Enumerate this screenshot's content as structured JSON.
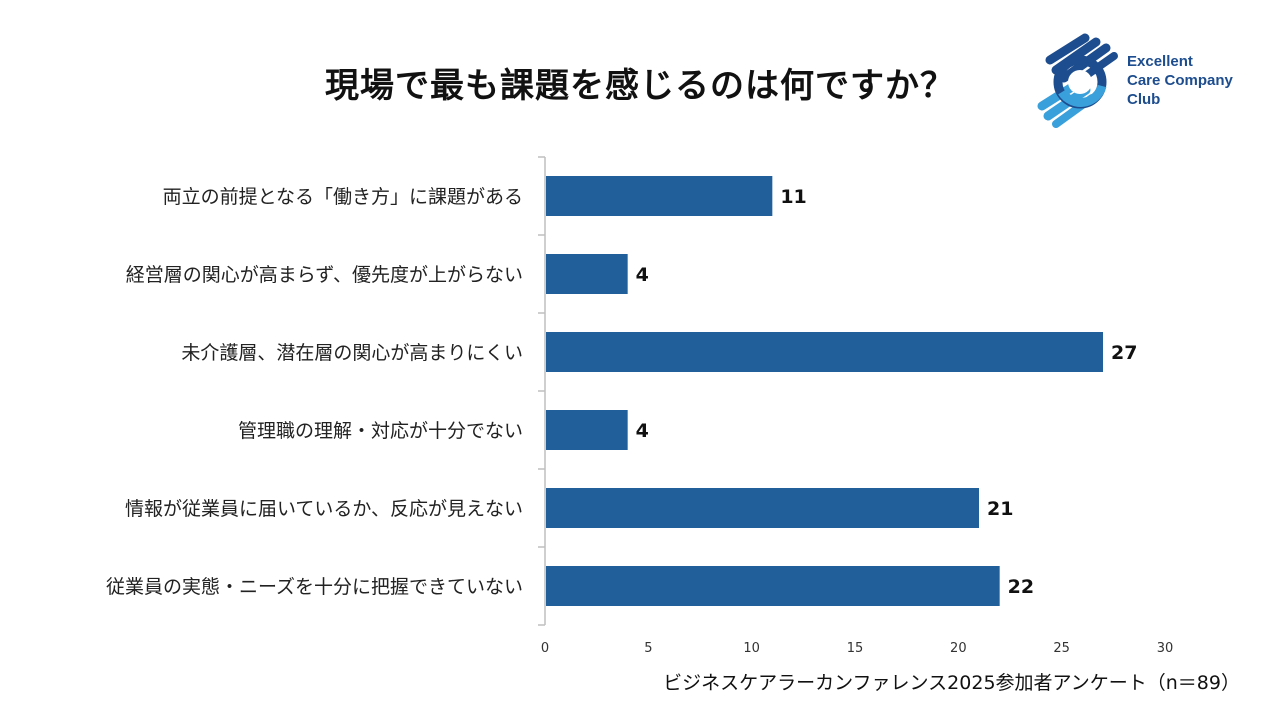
{
  "title": "現場で最も課題を感じるのは何ですか？",
  "logo": {
    "line1": "Excellent",
    "line2": "Care Company",
    "line3": "Club"
  },
  "footnote": "ビジネスケアラーカンファレンス2025参加者アンケート（n＝89）",
  "colors": {
    "bar": "#215f9a",
    "axis": "#bfbfbf",
    "brand_dark": "#1d4d8e",
    "brand_light": "#3aa0dc"
  },
  "chart_data": {
    "type": "bar",
    "orientation": "horizontal",
    "categories": [
      "両立の前提となる「働き方」に課題がある",
      "経営層の関心が高まらず、優先度が上がらない",
      "未介護層、潜在層の関心が高まりにくい",
      "管理職の理解・対応が十分でない",
      "情報が従業員に届いているか、反応が見えない",
      "従業員の実態・ニーズを十分に把握できていない"
    ],
    "values": [
      11,
      4,
      27,
      4,
      21,
      22
    ],
    "xlim": [
      0,
      30
    ],
    "xticks": [
      "0",
      "5",
      "10",
      "15",
      "20",
      "25",
      "30"
    ],
    "data_labels": true,
    "grid": false,
    "legend": "none"
  }
}
